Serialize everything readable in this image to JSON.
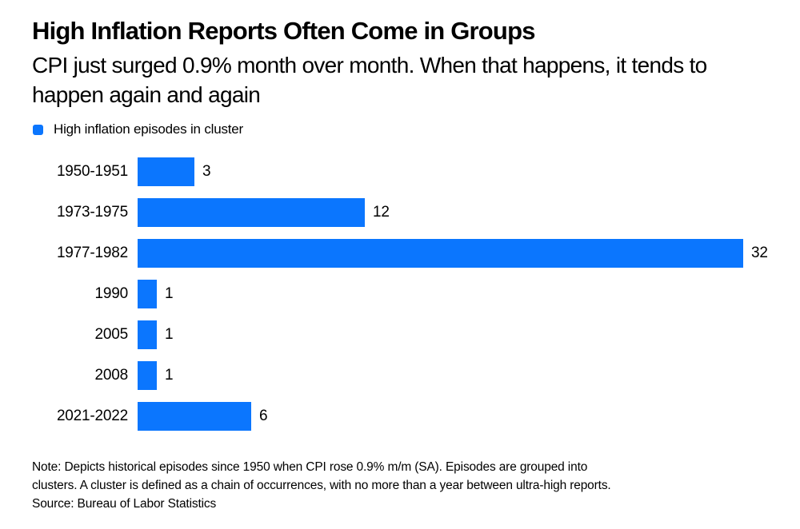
{
  "header": {
    "title": "High Inflation Reports Often Come in Groups",
    "subtitle_lines": [
      "CPI just surged 0.9% month over month. When that happens, it tends to",
      "happen again and again"
    ]
  },
  "legend": {
    "label": "High inflation episodes in cluster",
    "swatch_color": "#0b76fe"
  },
  "chart_data": {
    "type": "bar",
    "orientation": "horizontal",
    "title": "High Inflation Reports Often Come in Groups",
    "series_name": "High inflation episodes in cluster",
    "categories": [
      "1950-1951",
      "1973-1975",
      "1977-1982",
      "1990",
      "2005",
      "2008",
      "2021-2022"
    ],
    "values": [
      3,
      12,
      32,
      1,
      1,
      1,
      6
    ],
    "value_labels_shown": true,
    "xlim": [
      0,
      32
    ],
    "grid": false,
    "axis_lines": false,
    "bar_color": "#0b76fe",
    "label_color": "#000000",
    "background_color": "#ffffff"
  },
  "footer": {
    "note_lines": [
      "Note: Depicts historical episodes since 1950 when CPI rose 0.9% m/m (SA). Episodes are grouped into",
      "clusters. A cluster is defined as a chain of occurrences, with no more than a year between ultra-high reports."
    ],
    "source": "Source: Bureau of Labor Statistics"
  }
}
